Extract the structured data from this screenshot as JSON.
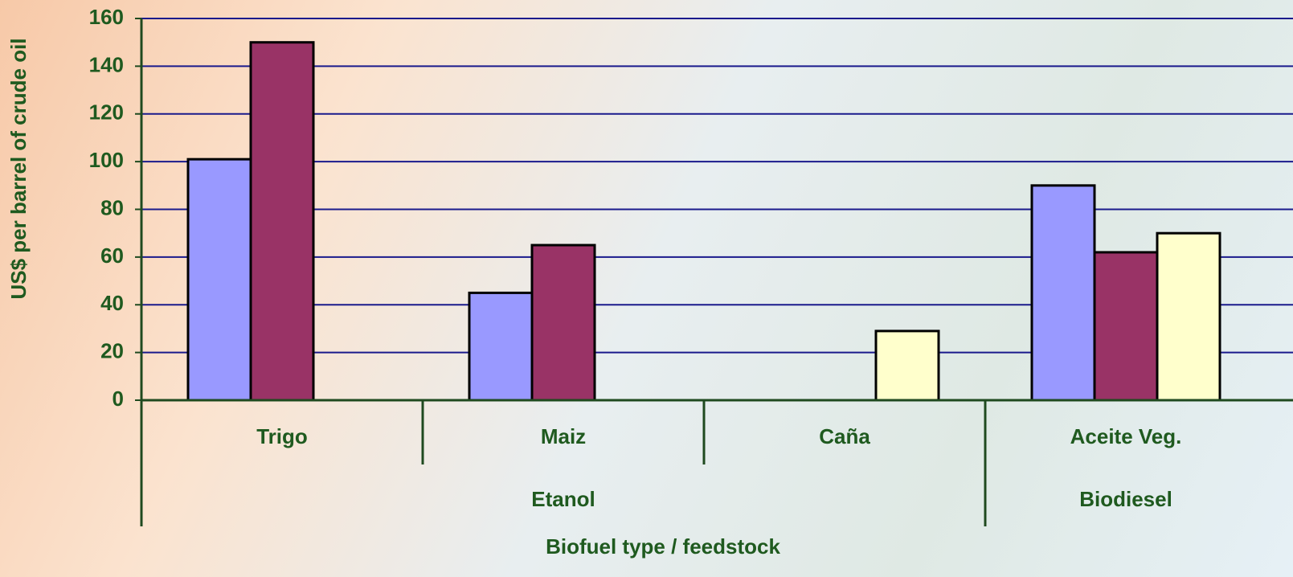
{
  "chart_data": {
    "type": "bar",
    "ylabel": "US$ per barrel of crude oil",
    "xlabel": "Biofuel type / feedstock",
    "categories": [
      "Trigo",
      "Maiz",
      "Caña",
      "Aceite Veg."
    ],
    "groups": [
      {
        "label": "Etanol",
        "members": [
          "Trigo",
          "Maiz",
          "Caña"
        ]
      },
      {
        "label": "Biodiesel",
        "members": [
          "Aceite Veg."
        ]
      }
    ],
    "series": [
      {
        "color": "#9999ff",
        "values": [
          101,
          45,
          null,
          90
        ]
      },
      {
        "color": "#993366",
        "values": [
          150,
          65,
          null,
          62
        ]
      },
      {
        "color": "#ffffcc",
        "values": [
          null,
          null,
          29,
          70
        ]
      }
    ],
    "ylim": [
      0,
      160
    ],
    "yticks": [
      0,
      20,
      40,
      60,
      80,
      100,
      120,
      140,
      160
    ],
    "grid": true
  }
}
